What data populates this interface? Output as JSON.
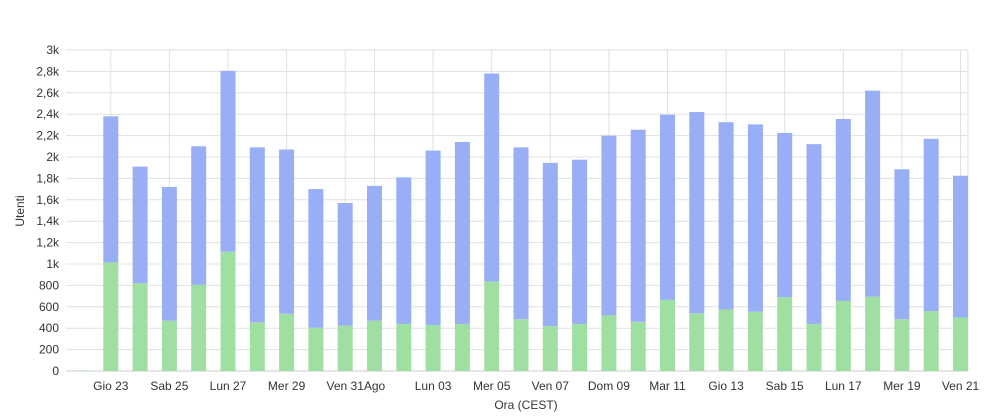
{
  "chart_data": {
    "type": "bar",
    "stacked": true,
    "xlabel": "Ora (CEST)",
    "ylabel": "Utenti",
    "ylim": [
      0,
      3000
    ],
    "yticks": [
      0,
      200,
      400,
      600,
      800,
      1000,
      1200,
      1400,
      1600,
      1800,
      2000,
      2200,
      2400,
      2600,
      2800,
      3000
    ],
    "ytick_labels": [
      "0",
      "200",
      "400",
      "600",
      "800",
      "1k",
      "1,2k",
      "1,4k",
      "1,6k",
      "1,8k",
      "2k",
      "2,2k",
      "2,4k",
      "2,6k",
      "2,8k",
      "3k"
    ],
    "xtick_labels": [
      {
        "label": "Gio 23",
        "index": 1
      },
      {
        "label": "Sab 25",
        "index": 3
      },
      {
        "label": "Lun 27",
        "index": 5
      },
      {
        "label": "Mer 29",
        "index": 7
      },
      {
        "label": "Ven 31",
        "index": 9
      },
      {
        "label": "Ago",
        "index": 10
      },
      {
        "label": "Lun 03",
        "index": 12
      },
      {
        "label": "Mer 05",
        "index": 14
      },
      {
        "label": "Ven 07",
        "index": 16
      },
      {
        "label": "Dom 09",
        "index": 18
      },
      {
        "label": "Mar 11",
        "index": 20
      },
      {
        "label": "Gio 13",
        "index": 22
      },
      {
        "label": "Sab 15",
        "index": 24
      },
      {
        "label": "Lun 17",
        "index": 26
      },
      {
        "label": "Mer 19",
        "index": 28
      },
      {
        "label": "Ven 21",
        "index": 30
      }
    ],
    "grid": true,
    "series": [
      {
        "color": "#9fe0a2",
        "values": [
          5,
          1015,
          820,
          470,
          805,
          1115,
          455,
          535,
          405,
          425,
          470,
          440,
          430,
          440,
          835,
          485,
          420,
          440,
          520,
          460,
          665,
          540,
          575,
          555,
          690,
          440,
          655,
          695,
          485,
          560,
          500
        ]
      },
      {
        "color": "#98aef5",
        "values": [
          0,
          1365,
          1090,
          1250,
          1295,
          1690,
          1635,
          1535,
          1295,
          1145,
          1260,
          1370,
          1630,
          1700,
          1945,
          1605,
          1525,
          1535,
          1680,
          1795,
          1730,
          1880,
          1750,
          1750,
          1535,
          1680,
          1700,
          1925,
          1400,
          1610,
          1325
        ]
      }
    ]
  }
}
